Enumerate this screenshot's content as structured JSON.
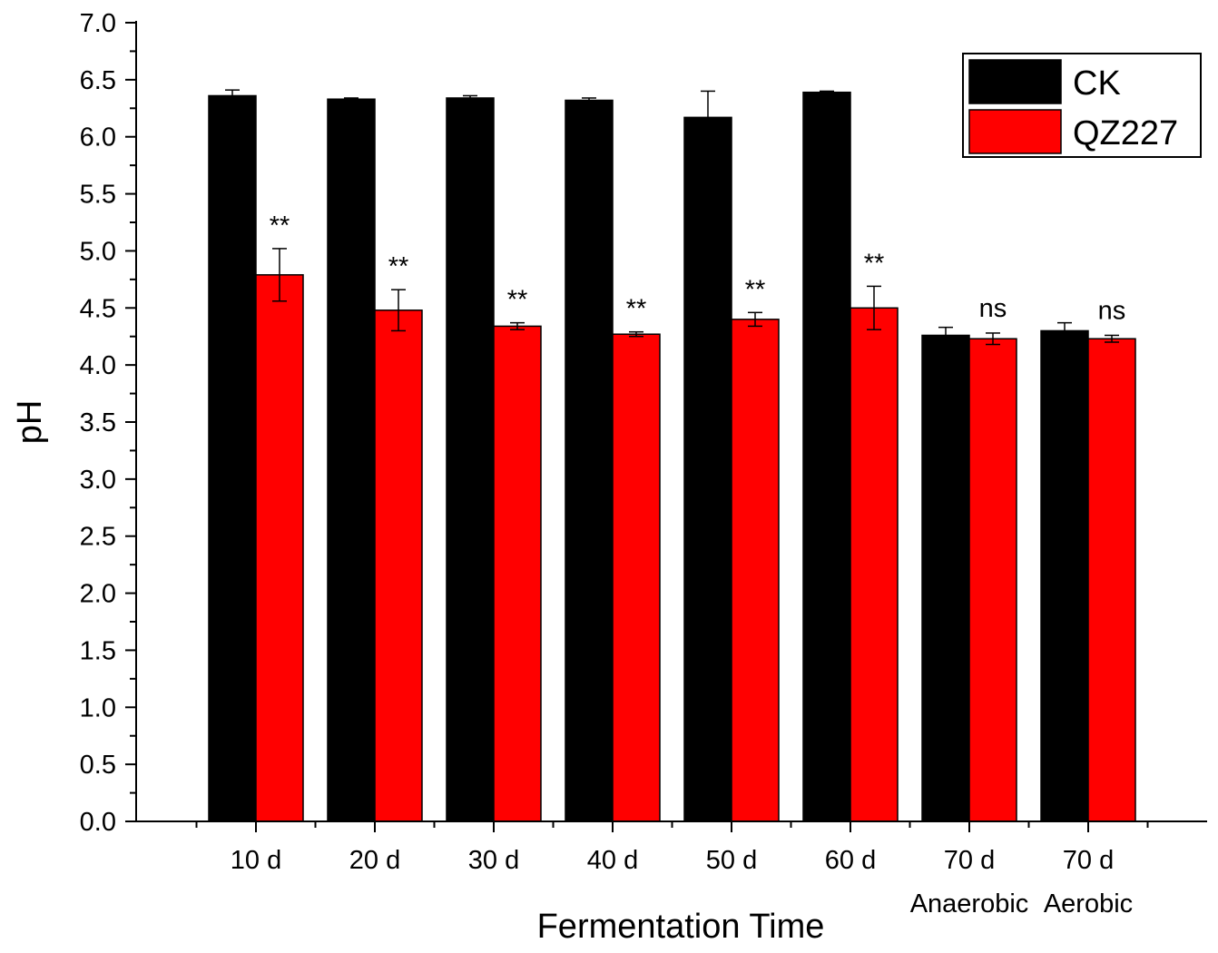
{
  "chart_data": {
    "type": "bar",
    "title": "",
    "xlabel": "Fermentation Time",
    "ylabel": "pH",
    "ylim": [
      0,
      7.0
    ],
    "yticks": [
      "0.0",
      "0.5",
      "1.0",
      "1.5",
      "2.0",
      "2.5",
      "3.0",
      "3.5",
      "4.0",
      "4.5",
      "5.0",
      "5.5",
      "6.0",
      "6.5",
      "7.0"
    ],
    "categories": [
      {
        "label": "10 d",
        "sublabel": ""
      },
      {
        "label": "20 d",
        "sublabel": ""
      },
      {
        "label": "30 d",
        "sublabel": ""
      },
      {
        "label": "40 d",
        "sublabel": ""
      },
      {
        "label": "50 d",
        "sublabel": ""
      },
      {
        "label": "60 d",
        "sublabel": ""
      },
      {
        "label": "70 d",
        "sublabel": "Anaerobic"
      },
      {
        "label": "70 d",
        "sublabel": "Aerobic"
      }
    ],
    "series": [
      {
        "name": "CK",
        "color": "#000000",
        "values": [
          6.36,
          6.33,
          6.34,
          6.32,
          6.17,
          6.39,
          4.26,
          4.3
        ],
        "errors": [
          0.05,
          0.01,
          0.02,
          0.02,
          0.23,
          0.01,
          0.07,
          0.07
        ]
      },
      {
        "name": "QZ227",
        "color": "#ff0000",
        "values": [
          4.79,
          4.48,
          4.34,
          4.27,
          4.4,
          4.5,
          4.23,
          4.23
        ],
        "errors": [
          0.23,
          0.18,
          0.03,
          0.02,
          0.06,
          0.19,
          0.05,
          0.03
        ]
      }
    ],
    "annotations": [
      "**",
      "**",
      "**",
      "**",
      "**",
      "**",
      "ns",
      "ns"
    ],
    "legend": {
      "position": "top-right",
      "entries": [
        "CK",
        "QZ227"
      ]
    },
    "grid": false
  }
}
